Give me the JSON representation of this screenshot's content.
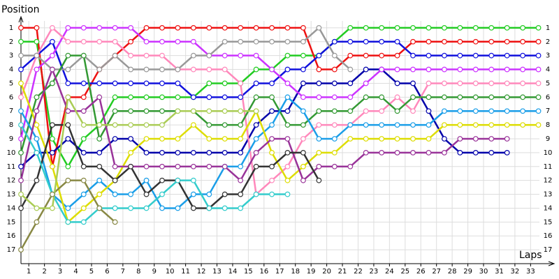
{
  "chart_data": {
    "type": "line",
    "y_label": "Position",
    "x_label": "Laps",
    "x": [
      0,
      1,
      2,
      3,
      4,
      5,
      6,
      7,
      8,
      9,
      10,
      11,
      12,
      13,
      14,
      15,
      16,
      17,
      18,
      19,
      20,
      21,
      22,
      23,
      24,
      25,
      26,
      27,
      28,
      29,
      30,
      31,
      32,
      33
    ],
    "xlim": [
      0,
      34
    ],
    "ylim": [
      18,
      0
    ],
    "xticks": [
      {
        "value": 0.5,
        "label": "1"
      },
      {
        "value": 1.5,
        "label": "2"
      },
      {
        "value": 2.5,
        "label": "3"
      },
      {
        "value": 3.5,
        "label": "4"
      },
      {
        "value": 4.5,
        "label": "5"
      },
      {
        "value": 5.5,
        "label": "6"
      },
      {
        "value": 6.5,
        "label": "7"
      },
      {
        "value": 7.5,
        "label": "8"
      },
      {
        "value": 8.5,
        "label": "9"
      },
      {
        "value": 9.5,
        "label": "10"
      },
      {
        "value": 10.5,
        "label": "11"
      },
      {
        "value": 11.5,
        "label": "12"
      },
      {
        "value": 12.5,
        "label": "13"
      },
      {
        "value": 13.5,
        "label": "14"
      },
      {
        "value": 14.5,
        "label": "15"
      },
      {
        "value": 15.5,
        "label": "16"
      },
      {
        "value": 16.5,
        "label": "17"
      },
      {
        "value": 17.5,
        "label": "18"
      },
      {
        "value": 18.5,
        "label": "19"
      },
      {
        "value": 19.5,
        "label": "20"
      },
      {
        "value": 20.5,
        "label": "21"
      },
      {
        "value": 21.5,
        "label": "22"
      },
      {
        "value": 22.5,
        "label": "23"
      },
      {
        "value": 23.5,
        "label": "24"
      },
      {
        "value": 24.5,
        "label": "25"
      },
      {
        "value": 25.5,
        "label": "26"
      },
      {
        "value": 26.5,
        "label": "27"
      },
      {
        "value": 27.5,
        "label": "28"
      },
      {
        "value": 28.5,
        "label": "29"
      },
      {
        "value": 29.5,
        "label": "30"
      },
      {
        "value": 30.5,
        "label": "31"
      },
      {
        "value": 31.5,
        "label": "32"
      },
      {
        "value": 32.5,
        "label": "33"
      }
    ],
    "yticks": [
      1,
      2,
      3,
      4,
      5,
      6,
      7,
      8,
      9,
      10,
      11,
      12,
      13,
      14,
      15,
      16,
      17
    ],
    "grid": true,
    "series": [
      {
        "color": "#22cc22",
        "values": [
          2,
          2,
          9,
          11,
          9,
          8,
          6,
          6,
          6,
          6,
          6,
          6,
          5,
          5,
          5,
          4,
          4,
          3,
          3,
          3,
          2,
          1,
          1,
          1,
          1,
          1,
          1,
          1,
          1,
          1,
          1,
          1,
          1,
          1
        ]
      },
      {
        "color": "#ee1111",
        "values": [
          1,
          1,
          11,
          6,
          6,
          4,
          3,
          2,
          1,
          1,
          1,
          1,
          1,
          1,
          1,
          1,
          1,
          1,
          1,
          4,
          4,
          3,
          3,
          3,
          3,
          2,
          2,
          2,
          2,
          2,
          2,
          2,
          2,
          2
        ]
      },
      {
        "color": "#1111dd",
        "values": [
          4,
          3,
          2,
          5,
          5,
          5,
          5,
          5,
          5,
          5,
          5,
          6,
          6,
          6,
          6,
          5,
          5,
          4,
          4,
          3,
          2,
          2,
          2,
          2,
          2,
          3,
          3,
          3,
          3,
          3,
          3,
          3,
          3,
          3
        ]
      },
      {
        "color": "#0000aa",
        "values": [
          11,
          10,
          10,
          9,
          10,
          10,
          9,
          9,
          10,
          10,
          10,
          10,
          10,
          10,
          10,
          8,
          7,
          7,
          5,
          5,
          5,
          5,
          4,
          4,
          5,
          5,
          7,
          9,
          10,
          10,
          10,
          10,
          null,
          null
        ]
      },
      {
        "color": "#cc33ff",
        "values": [
          9,
          4,
          3,
          1,
          1,
          1,
          1,
          1,
          2,
          2,
          2,
          2,
          3,
          3,
          3,
          3,
          4,
          5,
          6,
          6,
          6,
          6,
          5,
          4,
          4,
          4,
          4,
          4,
          4,
          4,
          4,
          4,
          4,
          4
        ]
      },
      {
        "color": "#ff88bb",
        "values": [
          6,
          3,
          1,
          2,
          2,
          2,
          2,
          3,
          3,
          3,
          4,
          4,
          4,
          4,
          5,
          13,
          12,
          11,
          9,
          8,
          8,
          8,
          7,
          7,
          6,
          7,
          5,
          5,
          5,
          5,
          5,
          5,
          5,
          5
        ]
      },
      {
        "color": "#999999",
        "values": [
          3,
          3,
          4,
          4,
          3,
          4,
          3,
          4,
          4,
          4,
          4,
          3,
          3,
          2,
          2,
          2,
          2,
          2,
          2,
          1,
          3,
          4,
          null,
          null,
          null,
          null,
          null,
          null,
          null,
          null,
          null,
          null,
          null,
          null
        ]
      },
      {
        "color": "#339933",
        "values": [
          10,
          6,
          5,
          3,
          3,
          9,
          7,
          7,
          7,
          7,
          7,
          7,
          8,
          8,
          8,
          6,
          6,
          8,
          8,
          7,
          7,
          7,
          6,
          6,
          7,
          6,
          6,
          6,
          6,
          6,
          6,
          6,
          6,
          6
        ]
      },
      {
        "color": "#1a9ee8",
        "values": [
          7,
          9,
          13,
          14,
          13,
          12,
          13,
          13,
          12,
          14,
          14,
          13,
          13,
          11,
          11,
          9,
          8,
          6,
          7,
          9,
          9,
          8,
          8,
          8,
          8,
          8,
          8,
          7,
          7,
          7,
          7,
          7,
          7,
          7
        ]
      },
      {
        "color": "#dddd00",
        "values": [
          5,
          8,
          11,
          15,
          14,
          13,
          12,
          10,
          9,
          9,
          9,
          8,
          9,
          9,
          9,
          7,
          10,
          12,
          11,
          10,
          10,
          9,
          9,
          9,
          9,
          9,
          9,
          8,
          8,
          8,
          8,
          8,
          8,
          8
        ]
      },
      {
        "color": "#993399",
        "values": [
          12,
          7,
          4,
          7,
          7,
          6,
          11,
          11,
          11,
          11,
          11,
          11,
          11,
          11,
          12,
          10,
          9,
          9,
          12,
          11,
          11,
          11,
          10,
          10,
          10,
          10,
          10,
          10,
          9,
          9,
          9,
          9,
          null,
          null
        ]
      },
      {
        "color": "#333333",
        "values": [
          14,
          12,
          8,
          8,
          11,
          11,
          12,
          11,
          13,
          12,
          12,
          14,
          14,
          13,
          13,
          11,
          11,
          10,
          10,
          12,
          null,
          null,
          null,
          null,
          null,
          null,
          null,
          null,
          null,
          null,
          null,
          null,
          null,
          null
        ]
      },
      {
        "color": "#33cccc",
        "values": [
          8,
          10,
          13,
          15,
          15,
          14,
          14,
          14,
          14,
          13,
          12,
          12,
          14,
          14,
          14,
          13,
          13,
          13,
          null,
          null,
          null,
          null,
          null,
          null,
          null,
          null,
          null,
          null,
          null,
          null,
          null,
          null,
          null,
          null
        ]
      },
      {
        "color": "#888844",
        "values": [
          17,
          15,
          13,
          12,
          12,
          14,
          15,
          null,
          null,
          null,
          null,
          null,
          null,
          null,
          null,
          null,
          null,
          null,
          null,
          null,
          null,
          null,
          null,
          null,
          null,
          null,
          null,
          null,
          null,
          null,
          null,
          null,
          null,
          null
        ]
      },
      {
        "color": "#aacc55",
        "values": [
          13,
          14,
          14,
          6,
          8,
          8,
          8,
          8,
          8,
          8,
          7,
          7,
          7,
          7,
          7,
          7,
          null,
          null,
          null,
          null,
          null,
          null,
          null,
          null,
          null,
          null,
          null,
          null,
          null,
          null,
          null,
          null,
          null,
          null
        ]
      }
    ]
  }
}
